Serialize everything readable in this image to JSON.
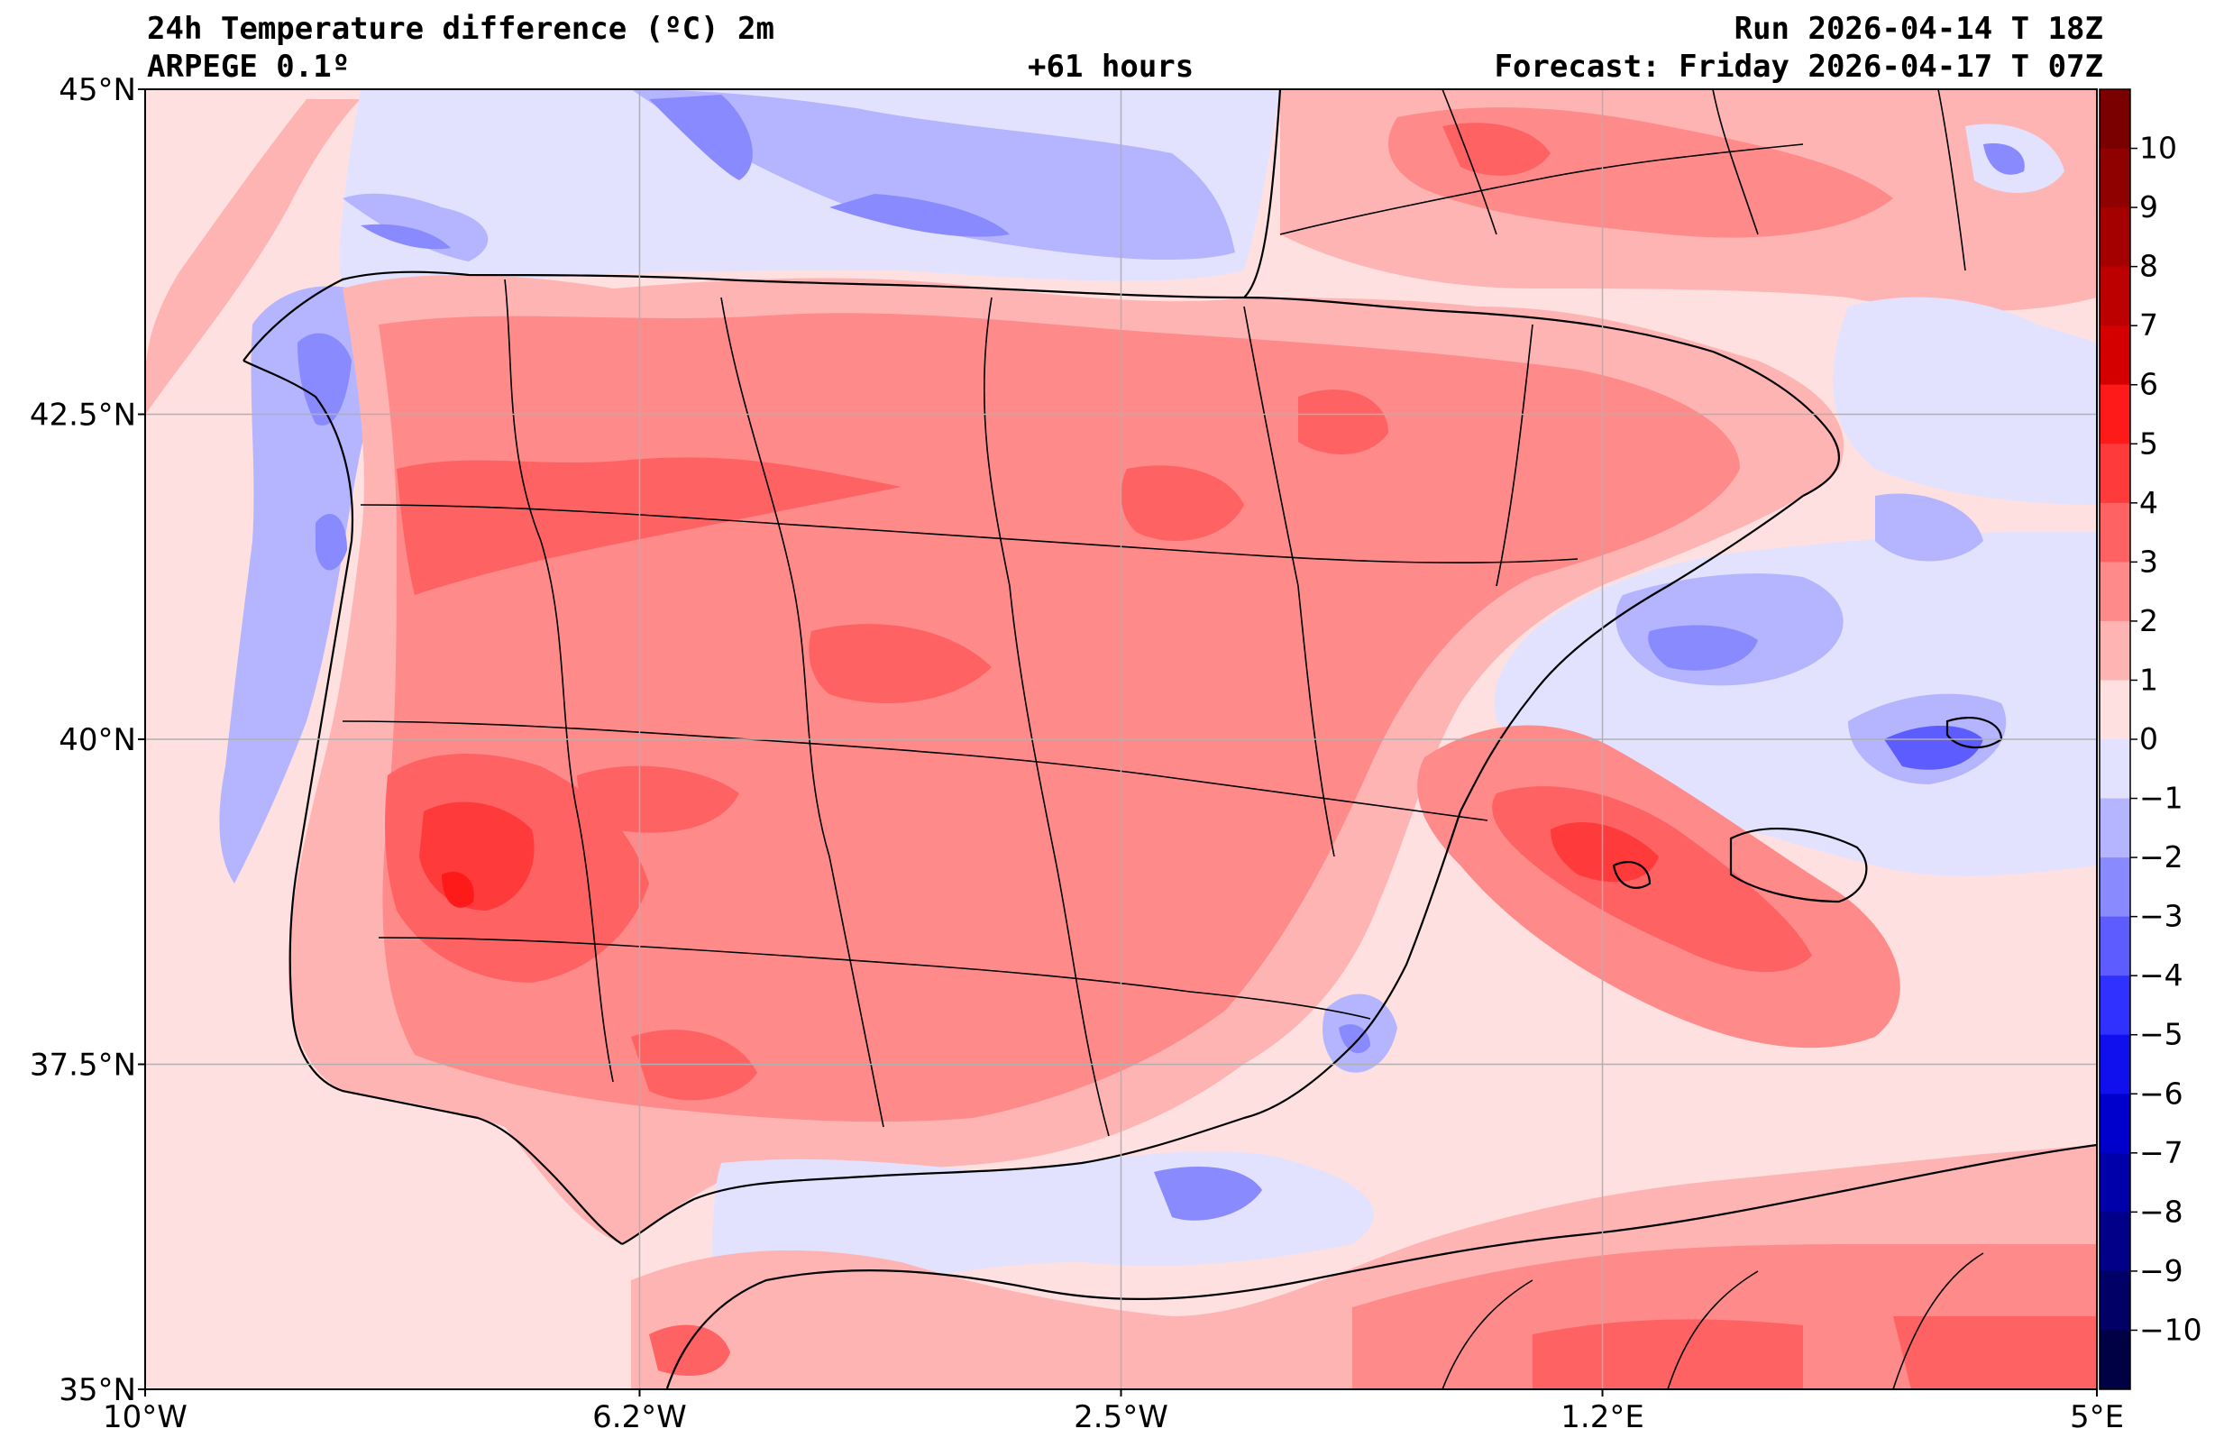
{
  "header": {
    "title": "24h Temperature difference (ºC) 2m",
    "model": "ARPEGE 0.1º",
    "lead": "+61 hours",
    "run": "Run 2026-04-14 T 18Z",
    "forecast": "Forecast: Friday 2026-04-17 T 07Z"
  },
  "map": {
    "lon_range": [
      -10,
      5
    ],
    "lat_range": [
      35,
      45
    ],
    "lon_ticks": [
      {
        "value": -10,
        "label": "10°W"
      },
      {
        "value": -6.2,
        "label": "6.2°W"
      },
      {
        "value": -2.5,
        "label": "2.5°W"
      },
      {
        "value": 1.2,
        "label": "1.2°E"
      },
      {
        "value": 5,
        "label": "5°E"
      }
    ],
    "lat_ticks": [
      {
        "value": 45,
        "label": "45°N"
      },
      {
        "value": 42.5,
        "label": "42.5°N"
      },
      {
        "value": 40,
        "label": "40°N"
      },
      {
        "value": 37.5,
        "label": "37.5°N"
      },
      {
        "value": 35,
        "label": "35°N"
      }
    ],
    "grid": true
  },
  "colorbar": {
    "min": -11,
    "max": 11,
    "labels": [
      "10",
      "9",
      "8",
      "7",
      "6",
      "5",
      "4",
      "3",
      "2",
      "1",
      "0",
      "−1",
      "−2",
      "−3",
      "−4",
      "−5",
      "−6",
      "−7",
      "−8",
      "−9",
      "−10"
    ],
    "colors": {
      "p10": "#7a0000",
      "p9": "#8f0000",
      "p8": "#a50000",
      "p7": "#bc0000",
      "p6": "#d40000",
      "p5": "#ff1a1a",
      "p4": "#ff3a3a",
      "p3": "#ff6262",
      "p2": "#ff8a8a",
      "p1": "#ffb4b4",
      "p0": "#ffe0e0",
      "n0": "#e2e2ff",
      "n1": "#b4b4ff",
      "n2": "#8a8aff",
      "n3": "#5c5cff",
      "n4": "#3030ff",
      "n5": "#1010ee",
      "n6": "#0000cc",
      "n7": "#0000aa",
      "n8": "#000088",
      "n9": "#000066",
      "n10": "#000044"
    }
  }
}
